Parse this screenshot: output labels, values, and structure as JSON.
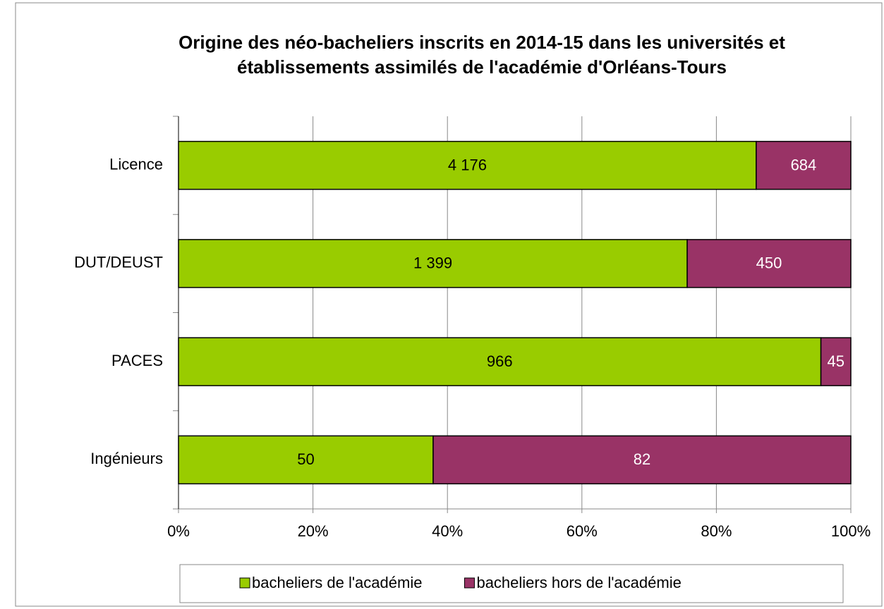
{
  "chart_data": {
    "type": "bar",
    "orientation": "horizontal",
    "stacked": "percent",
    "title": "Origine des néo-bacheliers inscrits en 2014-15 dans les universités et établissements assimilés de l'académie d'Orléans-Tours",
    "categories": [
      "Licence",
      "DUT/DEUST",
      "PACES",
      "Ingénieurs"
    ],
    "series": [
      {
        "name": "bacheliers de l'académie",
        "color": "#99cc00",
        "values": [
          4176,
          1399,
          966,
          50
        ],
        "value_labels": [
          "4 176",
          "1 399",
          "966",
          "50"
        ]
      },
      {
        "name": "bacheliers hors de l'académie",
        "color": "#993366",
        "values": [
          684,
          450,
          45,
          82
        ]
      }
    ],
    "xlim": [
      0,
      100
    ],
    "xticks": [
      {
        "value": 0,
        "label": "0%"
      },
      {
        "value": 20,
        "label": "20%"
      },
      {
        "value": 40,
        "label": "40%"
      },
      {
        "value": 60,
        "label": "60%"
      },
      {
        "value": 80,
        "label": "80%"
      },
      {
        "value": 100,
        "label": "100%"
      }
    ],
    "grid": true,
    "legend": "bottom"
  }
}
